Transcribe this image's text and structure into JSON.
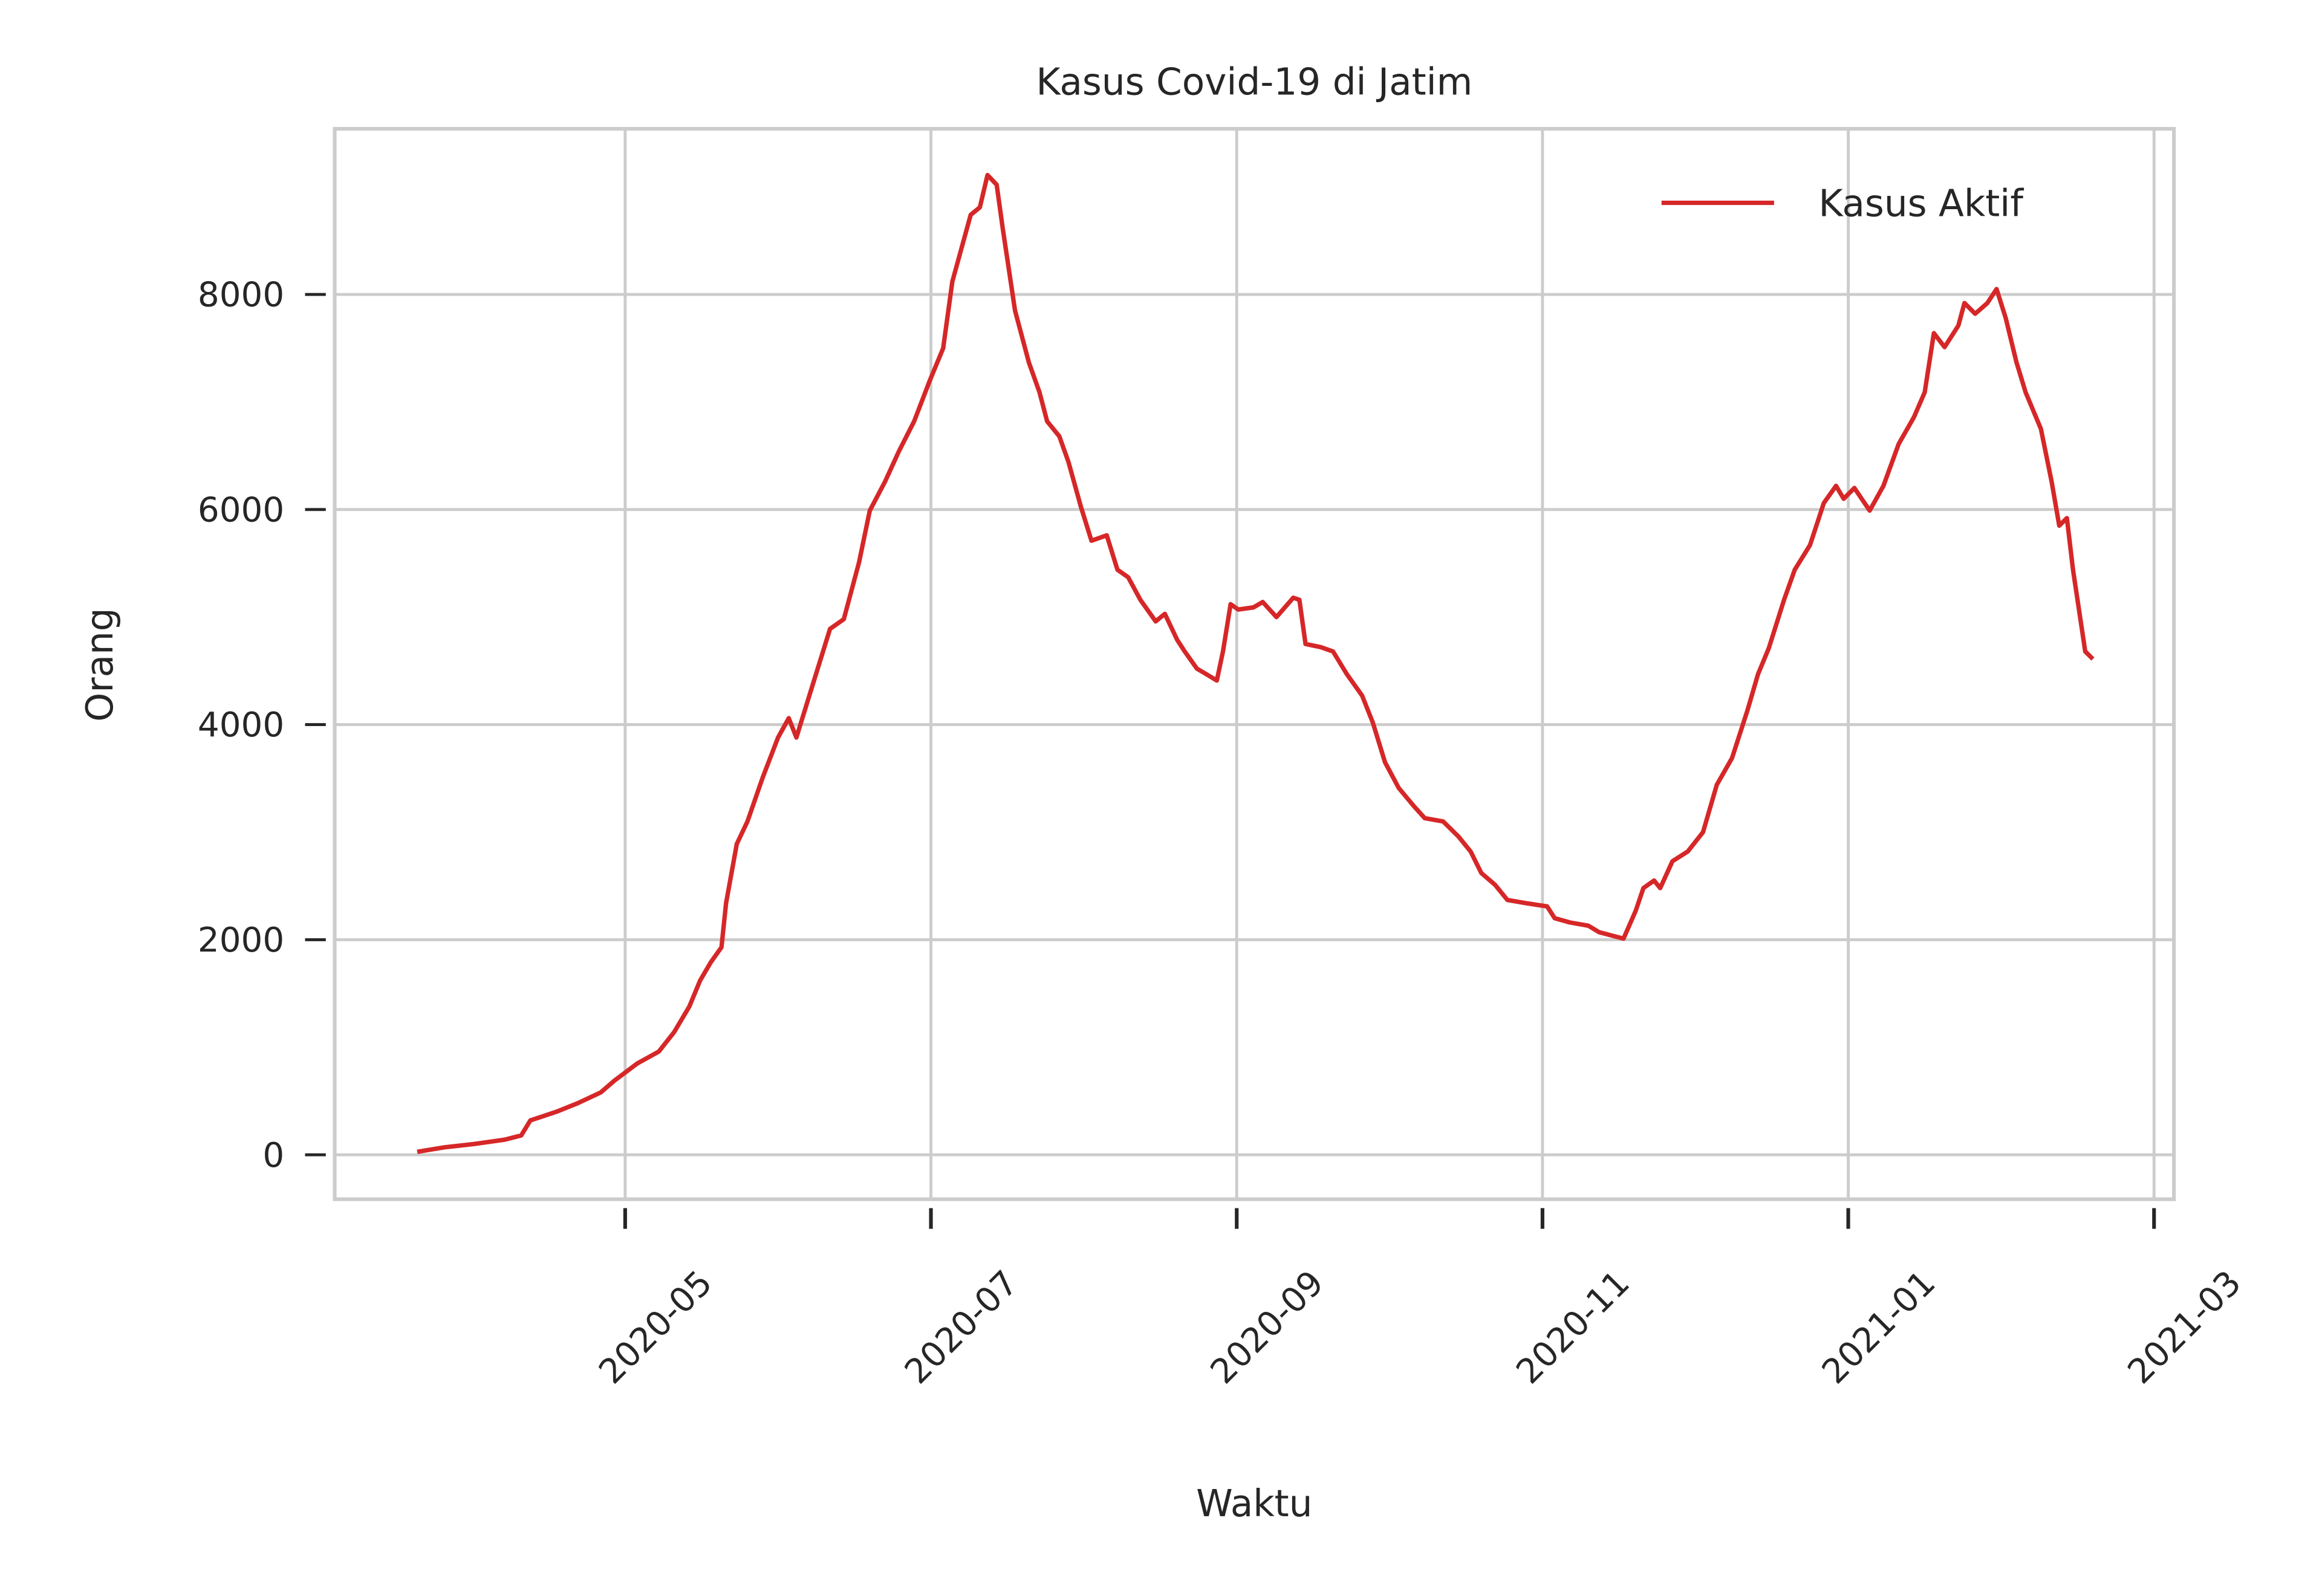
{
  "chart_data": {
    "type": "line",
    "title": "Kasus Covid-19 di Jatim",
    "x_label": "Waktu",
    "y_label": "Orang",
    "x": [
      3.64,
      3.82,
      4.01,
      4.21,
      4.32,
      4.38,
      4.55,
      4.69,
      4.84,
      4.93,
      5.08,
      5.22,
      5.32,
      5.42,
      5.49,
      5.56,
      5.63,
      5.66,
      5.73,
      5.8,
      5.9,
      6.0,
      6.07,
      6.12,
      6.22,
      6.34,
      6.43,
      6.53,
      6.6,
      6.7,
      6.79,
      6.89,
      6.99,
      7.08,
      7.14,
      7.26,
      7.32,
      7.37,
      7.43,
      7.47,
      7.55,
      7.64,
      7.71,
      7.76,
      7.84,
      7.9,
      7.98,
      8.05,
      8.15,
      8.22,
      8.29,
      8.37,
      8.47,
      8.53,
      8.61,
      8.66,
      8.74,
      8.8,
      8.87,
      8.91,
      8.96,
      9.01,
      9.11,
      9.17,
      9.26,
      9.37,
      9.41,
      9.45,
      9.55,
      9.63,
      9.72,
      9.82,
      9.89,
      9.97,
      10.06,
      10.16,
      10.23,
      10.35,
      10.45,
      10.53,
      10.6,
      10.69,
      10.77,
      10.89,
      11.03,
      11.08,
      11.18,
      11.3,
      11.37,
      11.53,
      11.61,
      11.66,
      11.73,
      11.77,
      11.85,
      11.95,
      12.05,
      12.14,
      12.24,
      12.34,
      12.41,
      12.48,
      12.58,
      12.65,
      12.75,
      12.84,
      12.92,
      12.97,
      13.04,
      13.14,
      13.23,
      13.33,
      13.43,
      13.5,
      13.56,
      13.63,
      13.72,
      13.76,
      13.83,
      13.91,
      13.97,
      14.03,
      14.1,
      14.16,
      14.26,
      14.33,
      14.38,
      14.43,
      14.47,
      14.55,
      14.6
    ],
    "series": [
      {
        "name": "Kasus Aktif",
        "color": "#d62728",
        "values": [
          28,
          70,
          100,
          140,
          180,
          320,
          400,
          480,
          580,
          690,
          850,
          960,
          1140,
          1380,
          1620,
          1790,
          1930,
          2340,
          2890,
          3100,
          3510,
          3880,
          4060,
          3880,
          4340,
          4890,
          4980,
          5510,
          5990,
          6260,
          6540,
          6820,
          7190,
          7500,
          8120,
          8740,
          8810,
          9110,
          9020,
          8610,
          7850,
          7370,
          7090,
          6820,
          6680,
          6440,
          6030,
          5710,
          5760,
          5440,
          5370,
          5160,
          4960,
          5030,
          4790,
          4680,
          4520,
          4470,
          4410,
          4680,
          5120,
          5070,
          5090,
          5140,
          5000,
          5180,
          5160,
          4750,
          4720,
          4680,
          4470,
          4270,
          4020,
          3650,
          3410,
          3240,
          3130,
          3100,
          2960,
          2820,
          2620,
          2510,
          2370,
          2340,
          2310,
          2200,
          2160,
          2130,
          2070,
          2010,
          2270,
          2480,
          2550,
          2480,
          2730,
          2820,
          3000,
          3440,
          3690,
          4130,
          4470,
          4710,
          5160,
          5440,
          5670,
          6060,
          6220,
          6100,
          6200,
          5990,
          6220,
          6610,
          6860,
          7090,
          7640,
          7510,
          7710,
          7920,
          7820,
          7920,
          8050,
          7780,
          7370,
          7090,
          6750,
          6260,
          5850,
          5920,
          5440,
          4680,
          4610
        ]
      }
    ],
    "xlim": [
      3.1,
      15.13
    ],
    "ylim": [
      -413,
      9540
    ],
    "xticks": [
      {
        "value": 5,
        "label": "2020-05"
      },
      {
        "value": 7,
        "label": "2020-07"
      },
      {
        "value": 9,
        "label": "2020-09"
      },
      {
        "value": 11,
        "label": "2020-11"
      },
      {
        "value": 13,
        "label": "2021-01"
      },
      {
        "value": 15,
        "label": "2021-03"
      }
    ],
    "yticks": [
      0,
      2000,
      4000,
      6000,
      8000
    ],
    "grid": true,
    "legend": "upper right"
  }
}
